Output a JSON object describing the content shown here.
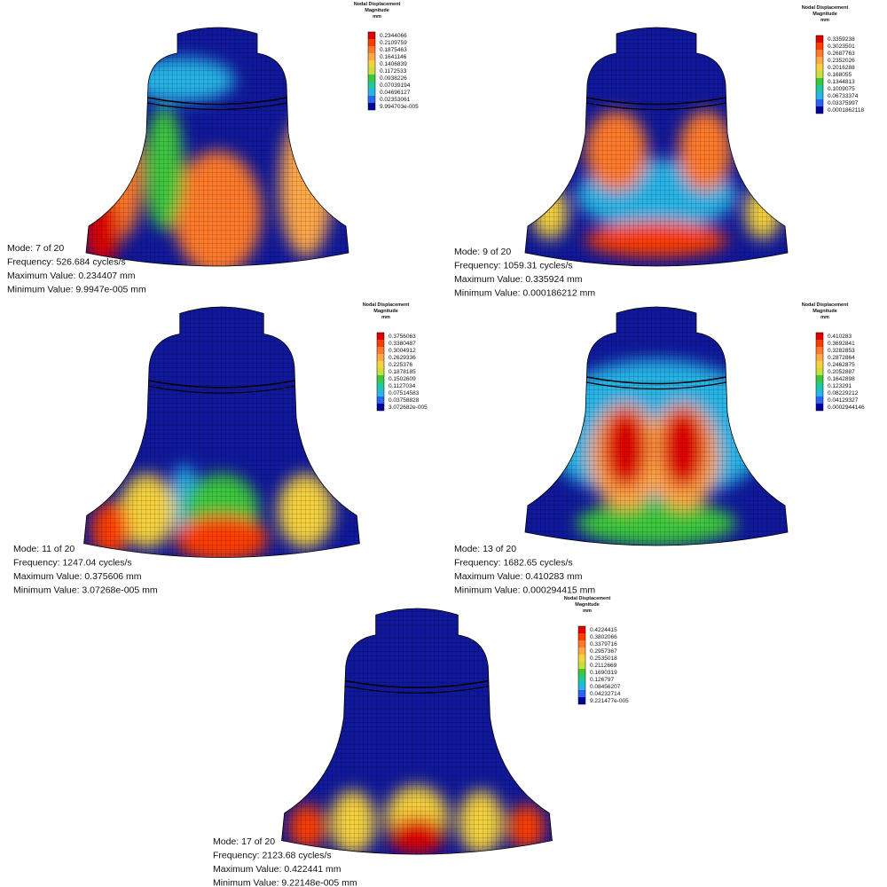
{
  "panels": [
    {
      "legend": {
        "title": [
          "Nodal Displacement",
          "Magnitude",
          "mm"
        ],
        "values": [
          "0.2344066",
          "0.2109759",
          "0.1875463",
          "0.1641146",
          "0.1406839",
          "0.1172533",
          "0.0938226",
          "0.07039194",
          "0.04696127",
          "0.02353061",
          "9.994703e-005"
        ]
      },
      "info": [
        "Mode:  7 of 20",
        "Frequency: 526.684 cycles/s",
        "Maximum Value: 0.234407 mm",
        "Minimum Value: 9.9947e-005 mm"
      ]
    },
    {
      "legend": {
        "title": [
          "Nodal Displacement",
          "Magnitude",
          "mm"
        ],
        "values": [
          "0.3359238",
          "0.3023501",
          "0.2687763",
          "0.2352026",
          "0.2016288",
          "0.168055",
          "0.1344813",
          "0.1009075",
          "0.06733374",
          "0.03375997",
          "0.0001862118"
        ]
      },
      "info": [
        "Mode:  9 of 20",
        "Frequency: 1059.31 cycles/s",
        "Maximum Value: 0.335924 mm",
        "Minimum Value: 0.000186212 mm"
      ]
    },
    {
      "legend": {
        "title": [
          "Nodal Displacement",
          "Magnitude",
          "mm"
        ],
        "values": [
          "0.3756063",
          "0.3380487",
          "0.3004912",
          "0.2629336",
          "0.225376",
          "0.1878185",
          "0.1502609",
          "0.1127034",
          "0.07514583",
          "0.03758828",
          "3.072682e-005"
        ]
      },
      "info": [
        "Mode:  11 of 20",
        "Frequency: 1247.04 cycles/s",
        "Maximum Value: 0.375606 mm",
        "Minimum Value: 3.07268e-005 mm"
      ]
    },
    {
      "legend": {
        "title": [
          "Nodal Displacement",
          "Magnitude",
          "mm"
        ],
        "values": [
          "0.410283",
          "0.3692841",
          "0.3282853",
          "0.2872864",
          "0.2462875",
          "0.2052887",
          "0.1642898",
          "0.123291",
          "0.08229212",
          "0.04129327",
          "0.0002944146"
        ]
      },
      "info": [
        "Mode:  13 of 20",
        "Frequency: 1682.65 cycles/s",
        "Maximum Value: 0.410283 mm",
        "Minimum Value: 0.000294415 mm"
      ]
    },
    {
      "legend": {
        "title": [
          "Nodal Displacement",
          "Magnitude",
          "mm"
        ],
        "values": [
          "0.4224415",
          "0.3802066",
          "0.3379716",
          "0.2957367",
          "0.2535018",
          "0.2112669",
          "0.1690319",
          "0.126797",
          "0.08456207",
          "0.04232714",
          "9.221477e-005"
        ]
      },
      "info": [
        "Mode:  17 of 20",
        "Frequency: 2123.68 cycles/s",
        "Maximum Value: 0.422441 mm",
        "Minimum Value: 9.22148e-005 mm"
      ]
    }
  ]
}
